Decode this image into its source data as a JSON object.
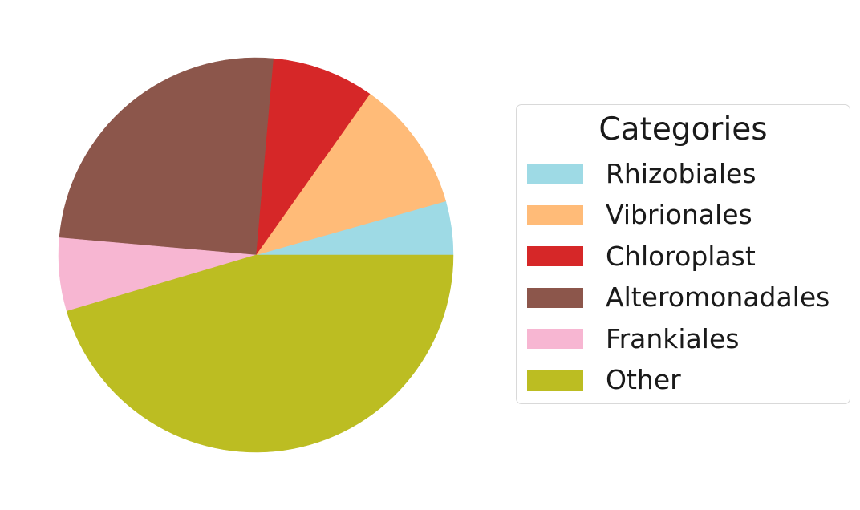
{
  "chart_data": {
    "type": "pie",
    "title": "",
    "legend_title": "Categories",
    "legend_placement": "right",
    "start_angle_deg": 0,
    "direction": "counterclockwise",
    "slices": [
      {
        "label": "Rhizobiales",
        "value": 4.4,
        "color": "#9edae5"
      },
      {
        "label": "Vibrionales",
        "value": 10.8,
        "color": "#ffbb78"
      },
      {
        "label": "Chloroplast",
        "value": 8.4,
        "color": "#d62728"
      },
      {
        "label": "Alteromonadales",
        "value": 25.0,
        "color": "#8c564b"
      },
      {
        "label": "Frankiales",
        "value": 6.0,
        "color": "#f7b6d2"
      },
      {
        "label": "Other",
        "value": 45.4,
        "color": "#bcbd22"
      }
    ]
  }
}
